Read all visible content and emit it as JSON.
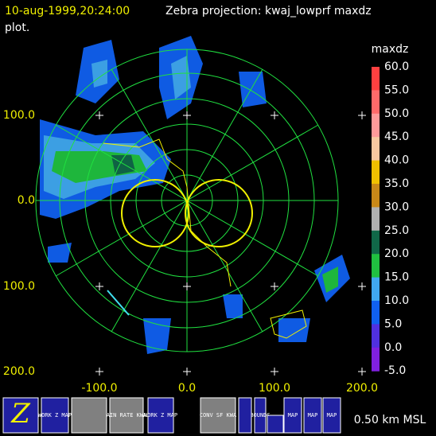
{
  "header": {
    "timestamp": "10-aug-1999,20:24:00",
    "title": "Zebra projection: kwaj_lowprf maxdz",
    "title_cont": "plot."
  },
  "plot": {
    "y_labels": [
      "100.0",
      "0.0",
      "100.0",
      "200.0"
    ],
    "x_labels": [
      "-100.0",
      "0.0",
      "100.0",
      "200.0"
    ]
  },
  "colorbar": {
    "title": "maxdz",
    "labels": [
      "60.0",
      "55.0",
      "50.0",
      "45.0",
      "40.0",
      "35.0",
      "30.0",
      "25.0",
      "20.0",
      "15.0",
      "10.0",
      "5.0",
      "0.0",
      "-5.0"
    ],
    "colors": [
      "#ff4040",
      "#ff6a6a",
      "#ff9a9a",
      "#f8c8a0",
      "#f0c000",
      "#c88818",
      "#b0b0b0",
      "#106848",
      "#20c040",
      "#40a8f0",
      "#1060f0",
      "#5030e0",
      "#8020e0"
    ]
  },
  "toolbar": {
    "buttons": [
      "WORK Z MAP",
      "RAIN RATE KWAJ",
      "WORK Z MAP",
      "CONV SF KWA",
      "BOUNDS",
      "MAP",
      "MAP",
      "MAP"
    ],
    "status": "0.50 km MSL"
  }
}
